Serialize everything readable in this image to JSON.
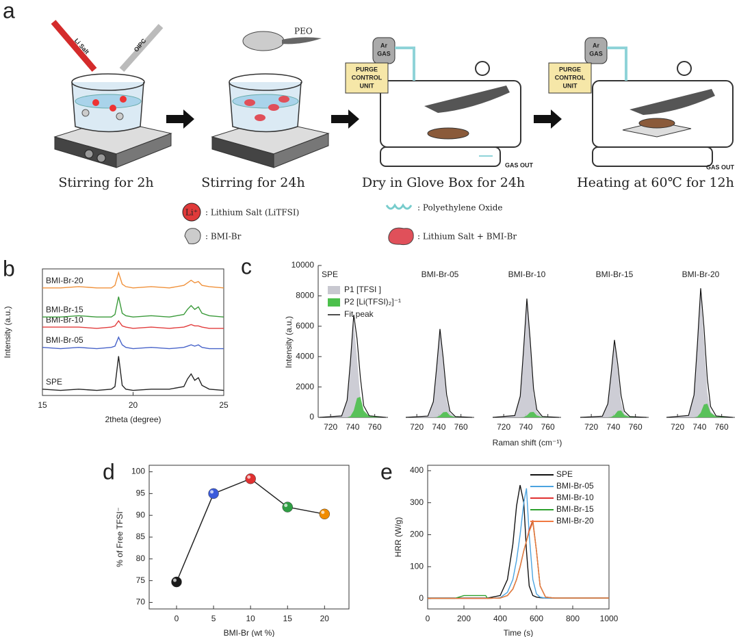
{
  "scheme": {
    "label": "a",
    "steps": [
      "Stirring for 2h",
      "Stirring for 24h",
      "Dry in Glove Box for 24h",
      "Heating at 60℃ for 12h"
    ],
    "tags": [
      "Li Salt",
      "OIPC",
      "PEO",
      "Ar",
      "GAS",
      "PURGE",
      "CONTROL",
      "UNIT",
      "GAS OUT"
    ],
    "legend": [
      {
        "symbol": "Li⁺",
        "text": ": Lithium Salt (LiTFSI)"
      },
      {
        "text": ": BMI-Br"
      },
      {
        "text": ": Polyethylene Oxide"
      },
      {
        "text": ": Lithium Salt + BMI-Br"
      }
    ]
  },
  "chart_data": [
    {
      "panel": "b",
      "type": "line",
      "x_label": "2theta (degree)",
      "y_label": "Intensity (a.u.)",
      "legend": "inline",
      "xlim": [
        15,
        25
      ],
      "xticks": [
        15,
        20,
        25
      ],
      "ylim": [
        0,
        100
      ],
      "x": [
        15,
        16,
        17,
        18,
        18.8,
        19.0,
        19.2,
        19.4,
        19.6,
        20,
        21,
        22,
        22.8,
        23.0,
        23.2,
        23.4,
        23.6,
        23.8,
        24.2,
        25
      ],
      "series": [
        {
          "name": "SPE",
          "color": "#222222",
          "values": [
            5,
            4,
            5,
            4,
            5,
            7,
            31,
            8,
            5,
            4,
            5,
            5,
            7,
            13,
            17,
            12,
            14,
            8,
            5,
            4
          ]
        },
        {
          "name": "BMI-Br-05",
          "color": "#4763c9",
          "values": [
            38,
            37,
            38,
            37,
            38,
            39,
            46,
            40,
            38,
            37,
            38,
            37,
            38,
            39,
            40,
            39,
            40,
            38,
            37,
            37
          ]
        },
        {
          "name": "BMI-Br-10",
          "color": "#e23b3b",
          "values": [
            54,
            54,
            54,
            53,
            54,
            55,
            59,
            55,
            54,
            53,
            54,
            53,
            54,
            55,
            56,
            55,
            55,
            54,
            53,
            53
          ]
        },
        {
          "name": "BMI-Br-15",
          "color": "#3a9a3a",
          "values": [
            62,
            62,
            63,
            62,
            62,
            64,
            78,
            65,
            63,
            62,
            63,
            62,
            64,
            68,
            71,
            68,
            70,
            65,
            63,
            62
          ]
        },
        {
          "name": "BMI-Br-20",
          "color": "#f0913a",
          "values": [
            85,
            85,
            86,
            85,
            85,
            87,
            97,
            88,
            86,
            85,
            86,
            85,
            87,
            89,
            91,
            89,
            90,
            87,
            86,
            85
          ]
        }
      ]
    },
    {
      "panel": "c",
      "type": "area",
      "x_label": "Raman shift (cm⁻¹)",
      "y_label": "Intensity (a.u.)",
      "legend": "upper left",
      "xlim": [
        710,
        772
      ],
      "xticks": [
        720,
        740,
        760
      ],
      "ylim": [
        0,
        10000
      ],
      "yticks": [
        0,
        2000,
        4000,
        6000,
        8000,
        10000
      ],
      "x": [
        710,
        730,
        735,
        738,
        741,
        744,
        747,
        750,
        755,
        770
      ],
      "series": [
        {
          "name": "P1 [TFSI ]",
          "color": "#c8c8d0",
          "kind": "area"
        },
        {
          "name": "P2 [Li(TFSI)₂]⁻¹",
          "color": "#4cc04c",
          "kind": "area"
        },
        {
          "name": "Fit peak",
          "color": "#111111",
          "kind": "line"
        }
      ],
      "panels": [
        {
          "title": "SPE",
          "values": [
            [
              0,
              95,
              1130,
              3650,
              6300,
              3900,
              1260,
              315,
              30,
              0
            ],
            [
              0,
              0,
              0,
              75,
              450,
              1275,
              1350,
              450,
              75,
              0
            ],
            [
              0,
              95,
              1130,
              3725,
              6750,
              5175,
              2610,
              765,
              105,
              0
            ]
          ]
        },
        {
          "title": "BMI-Br-05",
          "values": [
            [
              0,
              85,
              1030,
              3310,
              5700,
              3530,
              1140,
              285,
              30,
              0
            ],
            [
              0,
              0,
              0,
              20,
              120,
              340,
              360,
              120,
              20,
              0
            ],
            [
              0,
              85,
              1030,
              3330,
              5820,
              3870,
              1500,
              405,
              50,
              0
            ]
          ]
        },
        {
          "title": "BMI-Br-10",
          "values": [
            [
              0,
              115,
              1390,
              4470,
              7700,
              4770,
              1540,
              385,
              40,
              0
            ],
            [
              0,
              0,
              0,
              20,
              120,
              340,
              360,
              120,
              20,
              0
            ],
            [
              0,
              115,
              1390,
              4490,
              7820,
              5110,
              1900,
              505,
              60,
              0
            ]
          ]
        },
        {
          "title": "BMI-Br-15",
          "values": [
            [
              0,
              75,
              890,
              2870,
              4950,
              3070,
              990,
              250,
              25,
              0
            ],
            [
              0,
              0,
              0,
              25,
              150,
              425,
              450,
              150,
              25,
              0
            ],
            [
              0,
              75,
              890,
              2895,
              5100,
              3495,
              1440,
              400,
              50,
              0
            ]
          ]
        },
        {
          "title": "BMI-Br-20",
          "values": [
            [
              0,
              125,
              1480,
              4760,
              8200,
              5080,
              1640,
              410,
              40,
              0
            ],
            [
              0,
              0,
              0,
              50,
              300,
              850,
              900,
              300,
              50,
              0
            ],
            [
              0,
              125,
              1480,
              4810,
              8500,
              5930,
              2540,
              710,
              90,
              0
            ]
          ]
        }
      ]
    },
    {
      "panel": "d",
      "type": "scatter",
      "x_label": "BMI-Br (wt %)",
      "y_label": "% of Free TFSI⁻",
      "xlim": [
        -3.7,
        23.3
      ],
      "xticks": [
        0,
        5,
        10,
        15,
        20
      ],
      "ylim": [
        68.5,
        101.5
      ],
      "yticks": [
        70,
        75,
        80,
        85,
        90,
        95,
        100
      ],
      "x": [
        0,
        5,
        10,
        15,
        20
      ],
      "values": [
        74.7,
        95,
        98.4,
        91.9,
        90.3
      ],
      "colors": [
        "#1a1a1a",
        "#3b5bdb",
        "#e03131",
        "#2f9e44",
        "#f08c00"
      ],
      "line_color": "#222222"
    },
    {
      "panel": "e",
      "type": "line",
      "x_label": "Time (s)",
      "y_label": "HRR (W/g)",
      "legend": "upper right",
      "xlim": [
        0,
        1000
      ],
      "xticks": [
        0,
        200,
        400,
        600,
        800,
        1000
      ],
      "ylim": [
        -32,
        417
      ],
      "yticks": [
        0,
        100,
        200,
        300,
        400
      ],
      "x": [
        0,
        150,
        200,
        320,
        330,
        400,
        440,
        470,
        490,
        510,
        530,
        545,
        560,
        580,
        600,
        620,
        650,
        700,
        1000
      ],
      "series": [
        {
          "name": "SPE",
          "color": "#111111",
          "values": [
            2,
            2,
            2,
            2,
            2,
            10,
            60,
            170,
            290,
            355,
            300,
            150,
            40,
            10,
            5,
            3,
            2,
            2,
            2
          ]
        },
        {
          "name": "BMI-Br-05",
          "color": "#4aa3e0",
          "values": [
            1,
            1,
            1,
            1,
            1,
            3,
            20,
            60,
            120,
            200,
            300,
            345,
            200,
            60,
            15,
            5,
            2,
            2,
            2
          ]
        },
        {
          "name": "BMI-Br-10",
          "color": "#e03030",
          "values": [
            1,
            1,
            1,
            1,
            1,
            2,
            10,
            30,
            60,
            100,
            150,
            180,
            215,
            245,
            150,
            40,
            5,
            2,
            2
          ]
        },
        {
          "name": "BMI-Br-15",
          "color": "#2ca02c",
          "values": [
            1,
            1,
            10,
            10,
            1,
            2,
            10,
            30,
            60,
            100,
            150,
            180,
            210,
            240,
            150,
            40,
            5,
            2,
            2
          ]
        },
        {
          "name": "BMI-Br-20",
          "color": "#f07840",
          "values": [
            1,
            1,
            1,
            1,
            1,
            2,
            10,
            30,
            60,
            100,
            150,
            180,
            210,
            238,
            150,
            40,
            5,
            2,
            2
          ]
        }
      ]
    }
  ]
}
